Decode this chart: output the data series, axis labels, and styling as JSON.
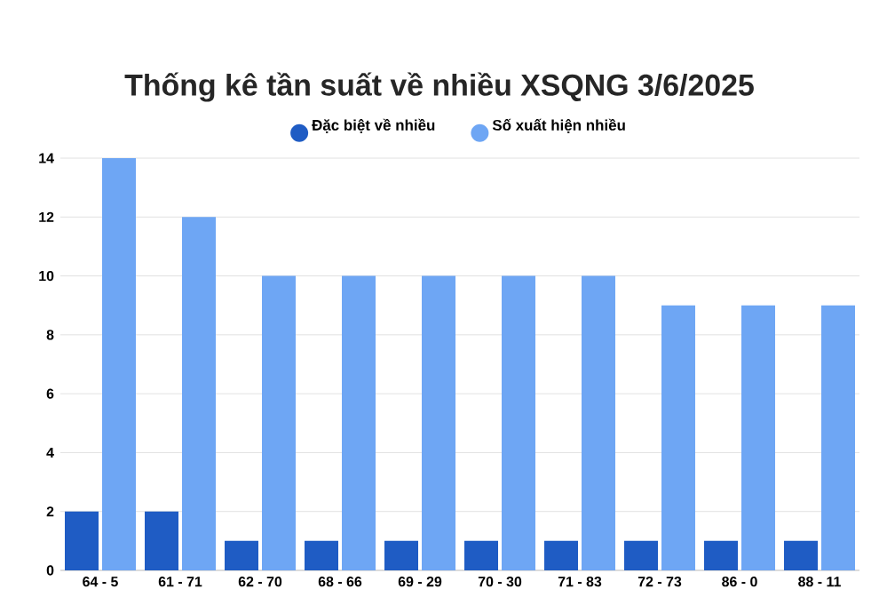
{
  "chart_data": {
    "type": "bar",
    "title": "Thống kê tần suất về nhiều XSQNG 3/6/2025",
    "categories": [
      "64 - 5",
      "61 - 71",
      "62 - 70",
      "68 - 66",
      "69 - 29",
      "70 - 30",
      "71 - 83",
      "72 - 73",
      "86 - 0",
      "88 - 11"
    ],
    "series": [
      {
        "name": "Đặc biệt về nhiều",
        "color": "#1f5cc4",
        "values": [
          2,
          2,
          1,
          1,
          1,
          1,
          1,
          1,
          1,
          1
        ]
      },
      {
        "name": "Số xuất hiện nhiều",
        "color": "#6ea6f4",
        "values": [
          14,
          12,
          10,
          10,
          10,
          10,
          10,
          9,
          9,
          9
        ]
      }
    ],
    "ylim": [
      0,
      14
    ],
    "yticks": [
      0,
      2,
      4,
      6,
      8,
      10,
      12,
      14
    ],
    "grid": "y",
    "legend": "top"
  }
}
